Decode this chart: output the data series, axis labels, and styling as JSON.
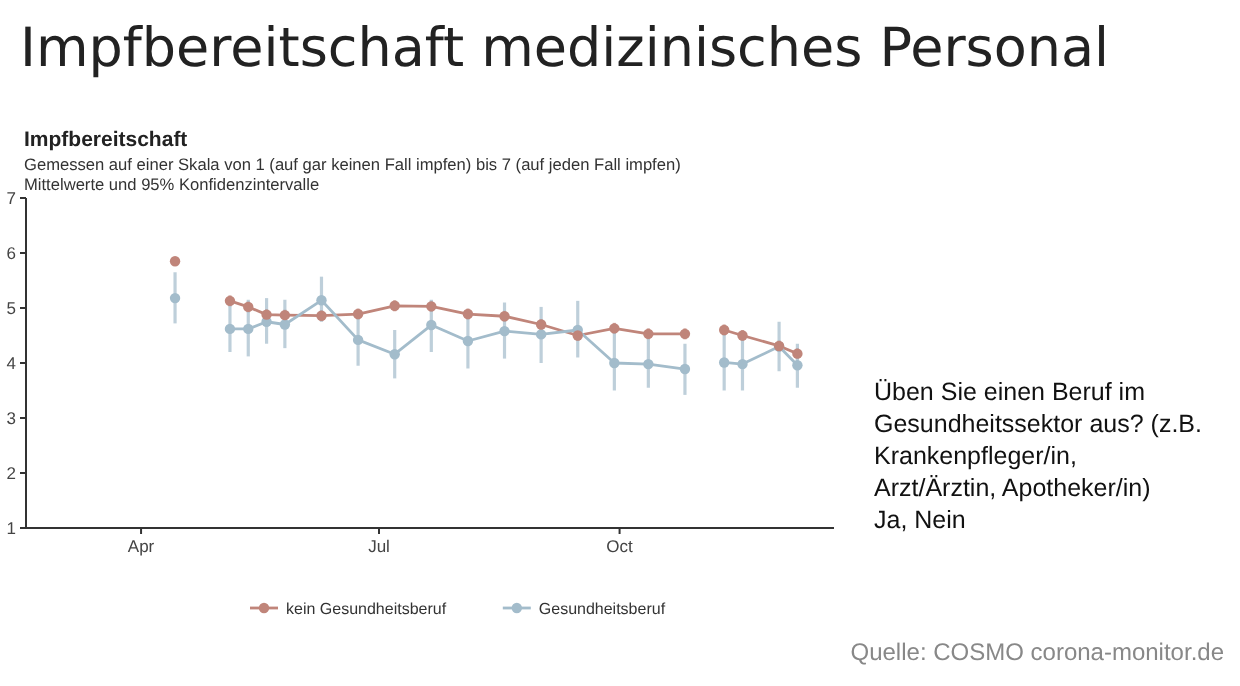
{
  "chart_data": {
    "type": "line",
    "title": "Impfbereitschaft medizinisches Personal",
    "subtitle": "Impfbereitschaft",
    "annotations": [
      "Gemessen auf einer Skala von 1 (auf gar keinen Fall impfen) bis 7 (auf jeden Fall impfen)",
      "Mittelwerte und 95% Konfidenzintervalle",
      "Üben Sie einen Beruf im Gesundheitssektor aus? (z.B. Krankenpfleger/in, Arzt/Ärztin, Apotheker/in) Ja, Nein",
      "Quelle: COSMO corona-monitor.de"
    ],
    "x": [
      "--04-14",
      "--04-24",
      "--05-05",
      "--05-12",
      "--05-19",
      "--05-26",
      "--06-09",
      "--06-23",
      "--07-07",
      "--07-21",
      "--08-04",
      "--08-18",
      "--09-01",
      "--09-15",
      "--09-29",
      "--10-12",
      "--10-26",
      "--11-03",
      "--11-10",
      "--11-17",
      "--12-01",
      "--12-08"
    ],
    "xlim": [
      "--02-17",
      "--12-22"
    ],
    "xticks": [
      {
        "value": "--04-01",
        "label": "Apr"
      },
      {
        "value": "--07-01",
        "label": "Jul"
      },
      {
        "value": "--10-01",
        "label": "Oct"
      }
    ],
    "ylim": [
      1,
      7
    ],
    "yticks": [
      1,
      2,
      3,
      4,
      5,
      6,
      7
    ],
    "grid": false,
    "legend": "bottom",
    "marker": "circle",
    "line_style": "solid",
    "series": [
      {
        "name": "kein Gesundheitsberuf",
        "color": "#c0857a",
        "values": [
          5.85,
          null,
          5.13,
          5.02,
          4.88,
          4.87,
          4.86,
          4.89,
          5.04,
          5.03,
          4.89,
          4.85,
          4.7,
          4.5,
          4.63,
          4.53,
          4.53,
          null,
          4.6,
          4.5,
          4.31,
          4.17
        ],
        "errors": [
          0.08,
          null,
          0.1,
          0.1,
          0.1,
          0.1,
          0.1,
          0.1,
          0.1,
          0.1,
          0.1,
          0.1,
          0.1,
          0.1,
          0.1,
          0.1,
          0.1,
          null,
          0.1,
          0.1,
          0.1,
          0.1
        ]
      },
      {
        "name": "Gesundheitsberuf",
        "color": "#a3bccb",
        "values": [
          5.18,
          null,
          4.62,
          4.62,
          4.75,
          4.7,
          5.14,
          4.42,
          4.16,
          4.69,
          4.4,
          4.58,
          4.52,
          4.6,
          4.0,
          3.98,
          3.89,
          null,
          4.01,
          3.98,
          4.3,
          3.96
        ],
        "errors": [
          [
            4.72,
            5.65
          ],
          null,
          [
            4.2,
            5.1
          ],
          [
            4.12,
            5.15
          ],
          [
            4.35,
            5.18
          ],
          [
            4.27,
            5.15
          ],
          [
            4.75,
            5.57
          ],
          [
            3.95,
            4.9
          ],
          [
            3.72,
            4.6
          ],
          [
            4.2,
            5.15
          ],
          [
            3.9,
            4.88
          ],
          [
            4.08,
            5.1
          ],
          [
            4.0,
            5.02
          ],
          [
            4.1,
            5.13
          ],
          [
            3.5,
            4.6
          ],
          [
            3.55,
            4.45
          ],
          [
            3.42,
            4.35
          ],
          null,
          [
            3.5,
            4.6
          ],
          [
            3.5,
            4.5
          ],
          [
            3.85,
            4.75
          ],
          [
            3.55,
            4.35
          ]
        ]
      }
    ]
  }
}
